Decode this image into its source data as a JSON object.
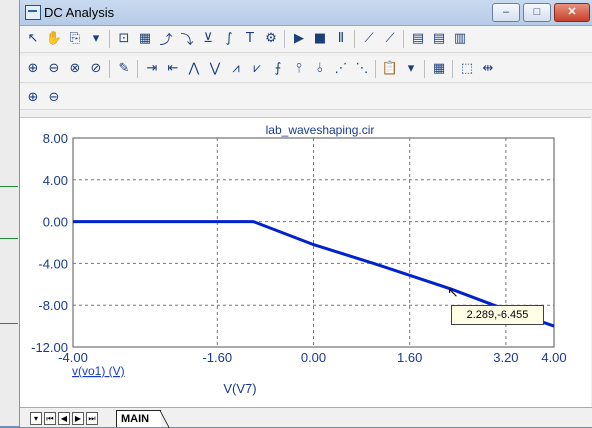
{
  "window": {
    "title": "DC Analysis",
    "minimize": "–",
    "maximize": "□",
    "close": "✕"
  },
  "toolbar1": [
    {
      "name": "select-arrow-icon",
      "glyph": "↖"
    },
    {
      "name": "pan-hand-icon",
      "glyph": "✋"
    },
    {
      "name": "copy-icon",
      "glyph": "⎘"
    },
    {
      "name": "dropdown-arrow-icon",
      "glyph": "▾"
    },
    {
      "name": "scale-icon",
      "glyph": "⊡"
    },
    {
      "name": "grid-icon",
      "glyph": "▦"
    },
    {
      "name": "cursor-peak-icon",
      "glyph": "⤴"
    },
    {
      "name": "cursor-valley-icon",
      "glyph": "⤵"
    },
    {
      "name": "cursor-low-icon",
      "glyph": "⊻"
    },
    {
      "name": "cursor-slope-icon",
      "glyph": "∫"
    },
    {
      "name": "text-icon",
      "glyph": "T"
    },
    {
      "name": "properties-icon",
      "glyph": "⚙"
    },
    {
      "name": "run-icon",
      "glyph": "▶"
    },
    {
      "name": "stop-icon",
      "glyph": "■"
    },
    {
      "name": "pause-icon",
      "glyph": "Ⅱ"
    },
    {
      "name": "plot-axes-icon",
      "glyph": "⟋"
    },
    {
      "name": "plot-add-icon",
      "glyph": "⟋"
    },
    {
      "name": "page-1-icon",
      "glyph": "▤"
    },
    {
      "name": "page-2-icon",
      "glyph": "▤"
    },
    {
      "name": "page-3-icon",
      "glyph": "▥"
    }
  ],
  "toolbar2": [
    {
      "name": "zoom-in-icon",
      "glyph": "⊕"
    },
    {
      "name": "zoom-out-icon",
      "glyph": "⊖"
    },
    {
      "name": "zoom-fit-icon",
      "glyph": "⊗"
    },
    {
      "name": "zoom-reset-icon",
      "glyph": "⊘"
    },
    {
      "name": "label-icon",
      "glyph": "✎"
    },
    {
      "name": "cursor-next-icon",
      "glyph": "⇥"
    },
    {
      "name": "cursor-prev-icon",
      "glyph": "⇤"
    },
    {
      "name": "peak-icon",
      "glyph": "⋀"
    },
    {
      "name": "valley-icon",
      "glyph": "⋁"
    },
    {
      "name": "high-icon",
      "glyph": "⩘"
    },
    {
      "name": "low-icon",
      "glyph": "⩗"
    },
    {
      "name": "inflection-icon",
      "glyph": "⨍"
    },
    {
      "name": "global-high-icon",
      "glyph": "⫯"
    },
    {
      "name": "global-low-icon",
      "glyph": "⫰"
    },
    {
      "name": "slope-icon",
      "glyph": "⋰"
    },
    {
      "name": "bottom-icon",
      "glyph": "⋱"
    },
    {
      "name": "clipboard-icon",
      "glyph": "📋"
    },
    {
      "name": "dropdown-arrow-2-icon",
      "glyph": "▾"
    },
    {
      "name": "data-table-icon",
      "glyph": "▦"
    },
    {
      "name": "frame-icon",
      "glyph": "⬚"
    },
    {
      "name": "fit-icon",
      "glyph": "⇹"
    }
  ],
  "toolbar3": [
    {
      "name": "zoom-in-small-icon",
      "glyph": "⊕"
    },
    {
      "name": "zoom-out-small-icon",
      "glyph": "⊖"
    }
  ],
  "tabs": {
    "main": "MAIN"
  },
  "tooltip": {
    "text": "2.289,-6.455"
  },
  "chart_data": {
    "type": "line",
    "title": "lab_waveshaping.cir",
    "xlabel": "V(V7)",
    "legend_label": "v(vo1) (V)",
    "xlim": [
      -4.0,
      4.0
    ],
    "ylim": [
      -12.0,
      8.0
    ],
    "x_ticks": [
      "-4.00",
      "-1.60",
      "0.00",
      "1.60",
      "3.20",
      "4.00"
    ],
    "y_ticks": [
      "8.00",
      "4.00",
      "0.00",
      "-4.00",
      "-8.00",
      "-12.00"
    ],
    "series": [
      {
        "color": "#0022cc",
        "x": [
          -4.0,
          -1.0,
          0.0,
          1.0,
          2.0,
          2.289,
          3.0,
          4.0
        ],
        "y": [
          0.0,
          0.0,
          -2.2,
          -4.0,
          -5.9,
          -6.455,
          -8.0,
          -10.0
        ]
      }
    ],
    "grid": true
  }
}
